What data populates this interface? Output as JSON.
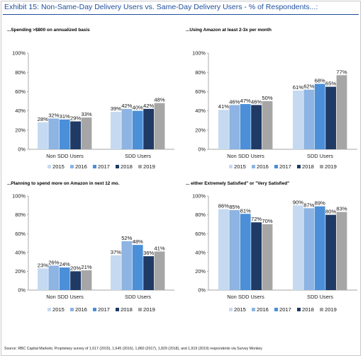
{
  "title": "Exhibit 15: Non-Same-Day Delivery Users vs. Same-Day Delivery Users - % of Respondents...:",
  "source": "Source: RBC Capital Markets; Proprietary survey of 1,617 (2015), 1,645 (2016), 1,860 (2017), 1,829 (2018), and 1,919 (2019) respondents via Survey Monkey",
  "colors": {
    "2015": "#c5d9f1",
    "2016": "#8db4e2",
    "2017": "#4a8fd8",
    "2018": "#1f3a64",
    "2019": "#a6a6a6"
  },
  "chart_data": [
    {
      "type": "bar",
      "title": "...Spending >$800 on annualized basis",
      "categories": [
        "Non SDD Users",
        "SDD Users"
      ],
      "series": [
        {
          "name": "2015",
          "values": [
            28,
            39
          ],
          "labels": [
            "28%",
            "39%"
          ]
        },
        {
          "name": "2016",
          "values": [
            32,
            42
          ],
          "labels": [
            "32%",
            "42%"
          ]
        },
        {
          "name": "2017",
          "values": [
            31,
            40
          ],
          "labels": [
            "31%",
            "40%"
          ]
        },
        {
          "name": "2018",
          "values": [
            29,
            42
          ],
          "labels": [
            "29%",
            "42%"
          ]
        },
        {
          "name": "2019",
          "values": [
            33,
            48
          ],
          "labels": [
            "33%",
            "48%"
          ]
        }
      ],
      "yticks": [
        "0%",
        "20%",
        "40%",
        "60%",
        "80%",
        "100%"
      ],
      "ylim": [
        0,
        100
      ],
      "legend": "bottom",
      "grid": false
    },
    {
      "type": "bar",
      "title": "...Using Amazon at least 2-3x per month",
      "categories": [
        "Non SDD Users",
        "SDD Users"
      ],
      "series": [
        {
          "name": "2015",
          "values": [
            41,
            61
          ],
          "labels": [
            "41%",
            "61%"
          ]
        },
        {
          "name": "2016",
          "values": [
            46,
            62
          ],
          "labels": [
            "46%",
            "62%"
          ]
        },
        {
          "name": "2017",
          "values": [
            47,
            68
          ],
          "labels": [
            "47%",
            "68%"
          ]
        },
        {
          "name": "2018",
          "values": [
            46,
            65
          ],
          "labels": [
            "46%",
            "65%"
          ]
        },
        {
          "name": "2019",
          "values": [
            50,
            77
          ],
          "labels": [
            "50%",
            "77%"
          ]
        }
      ],
      "yticks": [
        "0%",
        "20%",
        "40%",
        "60%",
        "80%",
        "100%"
      ],
      "ylim": [
        0,
        100
      ],
      "legend": "bottom",
      "grid": false
    },
    {
      "type": "bar",
      "title": "...Planning to spend more on Amazon in next 12 mo.",
      "categories": [
        "Non SDD Users",
        "SDD Users"
      ],
      "series": [
        {
          "name": "2015",
          "values": [
            23,
            37
          ],
          "labels": [
            "23%",
            "37%"
          ]
        },
        {
          "name": "2016",
          "values": [
            26,
            52
          ],
          "labels": [
            "26%",
            "52%"
          ]
        },
        {
          "name": "2017",
          "values": [
            24,
            48
          ],
          "labels": [
            "24%",
            "48%"
          ]
        },
        {
          "name": "2018",
          "values": [
            20,
            36
          ],
          "labels": [
            "20%",
            "36%"
          ]
        },
        {
          "name": "2019",
          "values": [
            21,
            41
          ],
          "labels": [
            "21%",
            "41%"
          ]
        }
      ],
      "yticks": [
        "0%",
        "20%",
        "40%",
        "60%",
        "80%",
        "100%"
      ],
      "ylim": [
        0,
        100
      ],
      "legend": "bottom",
      "grid": false
    },
    {
      "type": "bar",
      "title": "... either Extremely Satisfied\" or \"Very Satisfied\"",
      "categories": [
        "Non SDD Users",
        "SDD Users"
      ],
      "series": [
        {
          "name": "2015",
          "values": [
            86,
            90
          ],
          "labels": [
            "86%",
            "90%"
          ]
        },
        {
          "name": "2016",
          "values": [
            85,
            87
          ],
          "labels": [
            "85%",
            "87%"
          ]
        },
        {
          "name": "2017",
          "values": [
            81,
            89
          ],
          "labels": [
            "81%",
            "89%"
          ]
        },
        {
          "name": "2018",
          "values": [
            72,
            80
          ],
          "labels": [
            "72%",
            "80%"
          ]
        },
        {
          "name": "2019",
          "values": [
            70,
            83
          ],
          "labels": [
            "70%",
            "83%"
          ]
        }
      ],
      "yticks": [
        "0%",
        "20%",
        "40%",
        "60%",
        "80%",
        "100%"
      ],
      "ylim": [
        0,
        100
      ],
      "legend": "bottom",
      "grid": false
    }
  ]
}
